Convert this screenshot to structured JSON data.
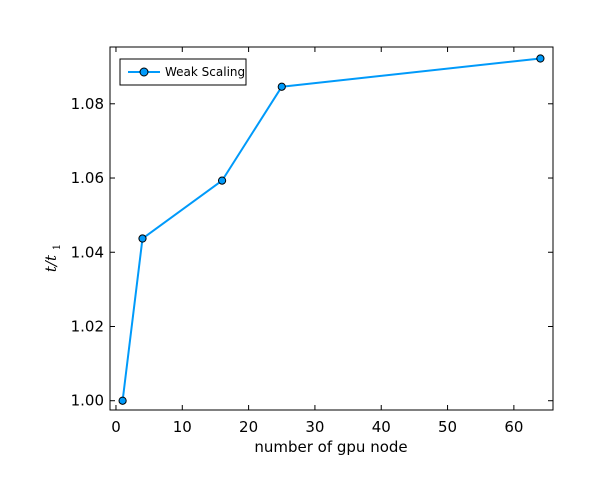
{
  "chart_data": {
    "type": "line",
    "title": "",
    "xlabel": "number of gpu node",
    "ylabel": {
      "main": "t/t",
      "subscript": "1"
    },
    "xlim": [
      -0.9,
      65.9
    ],
    "ylim": [
      0.9975,
      1.0953
    ],
    "xticks": [
      0,
      10,
      20,
      30,
      40,
      50,
      60
    ],
    "xtick_labels": [
      "0",
      "10",
      "20",
      "30",
      "40",
      "50",
      "60"
    ],
    "yticks": [
      1.0,
      1.02,
      1.04,
      1.06,
      1.08
    ],
    "ytick_labels": [
      "1.00",
      "1.02",
      "1.04",
      "1.06",
      "1.08"
    ],
    "grid": false,
    "legend_position": "top-left",
    "series": [
      {
        "name": "Weak Scaling",
        "color": "#009AFA",
        "marker": "circle",
        "x": [
          1,
          4,
          16,
          25,
          64
        ],
        "y": [
          1.0,
          1.0437,
          1.0593,
          1.0846,
          1.0922
        ]
      }
    ]
  }
}
